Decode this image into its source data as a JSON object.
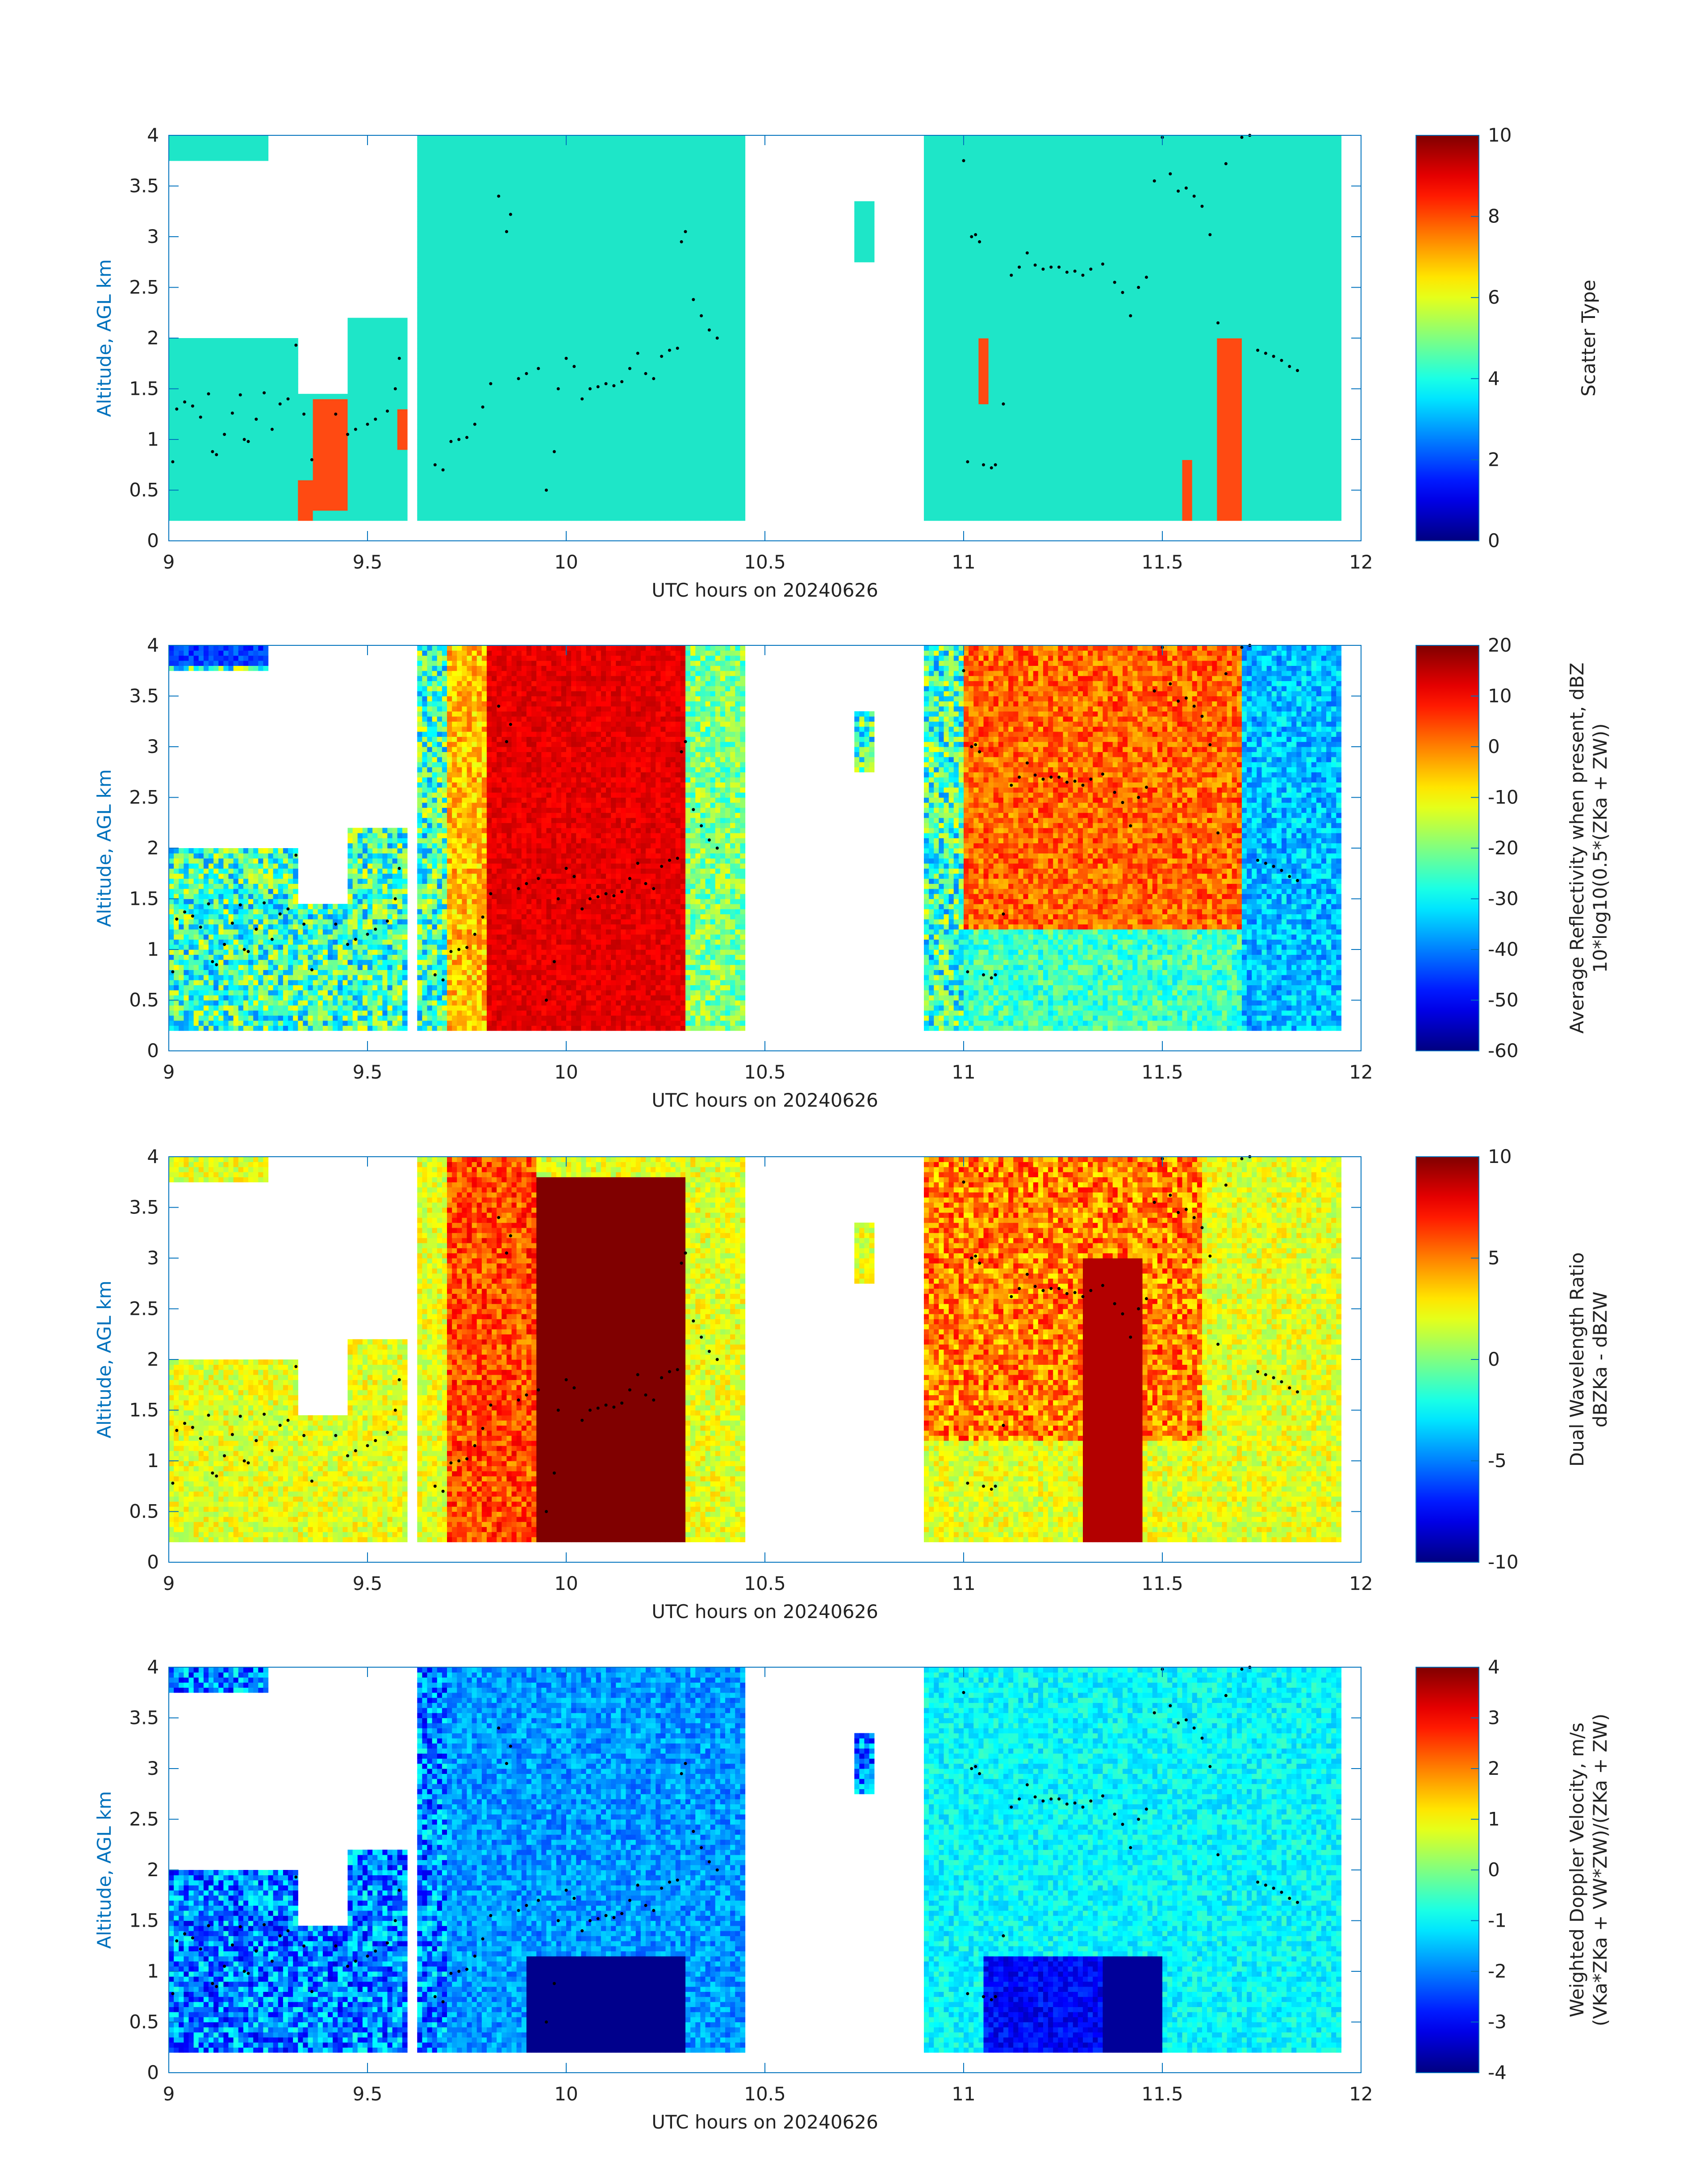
{
  "chart_data": [
    {
      "type": "heatmap",
      "xlabel": "UTC hours on 20240626",
      "ylabel": "Altitude, AGL km",
      "colorbar_label": [
        "Scatter Type"
      ],
      "xlim": [
        9,
        12
      ],
      "ylim": [
        0,
        4
      ],
      "xticks": [
        "9",
        "9.5",
        "10",
        "10.5",
        "11",
        "11.5",
        "12"
      ],
      "yticks": [
        "0",
        "0.5",
        "1",
        "1.5",
        "2",
        "2.5",
        "3",
        "3.5",
        "4"
      ],
      "clim": [
        0,
        10
      ],
      "cticks": [
        "0",
        "2",
        "4",
        "6",
        "8",
        "10"
      ],
      "field": "type"
    },
    {
      "type": "heatmap",
      "xlabel": "UTC hours on 20240626",
      "ylabel": "Altitude, AGL km",
      "colorbar_label": [
        "Average Reflectivity when present, dBZ",
        "10*log10(0.5*(Z_Ka + Z_W))"
      ],
      "xlim": [
        9,
        12
      ],
      "ylim": [
        0,
        4
      ],
      "xticks": [
        "9",
        "9.5",
        "10",
        "10.5",
        "11",
        "11.5",
        "12"
      ],
      "yticks": [
        "0",
        "0.5",
        "1",
        "1.5",
        "2",
        "2.5",
        "3",
        "3.5",
        "4"
      ],
      "clim": [
        -60,
        20
      ],
      "cticks": [
        "-60",
        "-50",
        "-40",
        "-30",
        "-20",
        "-10",
        "0",
        "10",
        "20"
      ],
      "field": "refl"
    },
    {
      "type": "heatmap",
      "xlabel": "UTC hours on 20240626",
      "ylabel": "Altitude, AGL km",
      "colorbar_label": [
        "Dual Wavelength Ratio",
        "dBZ_Ka - dBZ_W"
      ],
      "xlim": [
        9,
        12
      ],
      "ylim": [
        0,
        4
      ],
      "xticks": [
        "9",
        "9.5",
        "10",
        "10.5",
        "11",
        "11.5",
        "12"
      ],
      "yticks": [
        "0",
        "0.5",
        "1",
        "1.5",
        "2",
        "2.5",
        "3",
        "3.5",
        "4"
      ],
      "clim": [
        -10,
        10
      ],
      "cticks": [
        "-10",
        "-5",
        "0",
        "5",
        "10"
      ],
      "field": "dwr"
    },
    {
      "type": "heatmap",
      "xlabel": "UTC hours on 20240626",
      "ylabel": "Altitude, AGL km",
      "colorbar_label": [
        "Weighted Doppler Velocity, m/s",
        "(V_Ka*Z_Ka + V_W*Z_W)/(Z_Ka + Z_W)"
      ],
      "xlim": [
        9,
        12
      ],
      "ylim": [
        0,
        4
      ],
      "xticks": [
        "9",
        "9.5",
        "10",
        "10.5",
        "11",
        "11.5",
        "12"
      ],
      "yticks": [
        "0",
        "0.5",
        "1",
        "1.5",
        "2",
        "2.5",
        "3",
        "3.5",
        "4"
      ],
      "clim": [
        -4,
        4
      ],
      "cticks": [
        "-4",
        "-3",
        "-2",
        "-1",
        "0",
        "1",
        "2",
        "3",
        "4"
      ],
      "field": "vel"
    }
  ],
  "colormap": "jet",
  "colors": {
    "axis": "#0072bd",
    "type_main": "#1ee6c8",
    "type_alt": "#ff4a12",
    "marker": "#000000"
  },
  "echo_regions": [
    {
      "t0": 9.0,
      "t1": 9.33,
      "z0": 0.2,
      "z1": 2.0
    },
    {
      "t0": 9.0,
      "t1": 9.25,
      "z0": 3.75,
      "z1": 4.0
    },
    {
      "t0": 9.33,
      "t1": 9.45,
      "z0": 0.2,
      "z1": 1.45
    },
    {
      "t0": 9.45,
      "t1": 9.6,
      "z0": 0.2,
      "z1": 2.2
    },
    {
      "t0": 9.63,
      "t1": 10.45,
      "z0": 0.2,
      "z1": 4.0
    },
    {
      "t0": 10.36,
      "t1": 10.4,
      "z0": 2.78,
      "z1": 2.9
    },
    {
      "t0": 10.72,
      "t1": 10.77,
      "z0": 2.75,
      "z1": 3.35
    },
    {
      "t0": 10.9,
      "t1": 11.95,
      "z0": 0.2,
      "z1": 4.0
    }
  ],
  "overlay_points": [
    [
      9.01,
      0.78
    ],
    [
      9.02,
      1.3
    ],
    [
      9.04,
      1.37
    ],
    [
      9.06,
      1.33
    ],
    [
      9.08,
      1.22
    ],
    [
      9.1,
      1.45
    ],
    [
      9.11,
      0.88
    ],
    [
      9.12,
      0.85
    ],
    [
      9.14,
      1.05
    ],
    [
      9.16,
      1.26
    ],
    [
      9.18,
      1.44
    ],
    [
      9.19,
      1.0
    ],
    [
      9.2,
      0.98
    ],
    [
      9.22,
      1.2
    ],
    [
      9.24,
      1.46
    ],
    [
      9.26,
      1.1
    ],
    [
      9.28,
      1.35
    ],
    [
      9.3,
      1.4
    ],
    [
      9.32,
      1.93
    ],
    [
      9.34,
      1.25
    ],
    [
      9.36,
      0.8
    ],
    [
      9.42,
      1.25
    ],
    [
      9.45,
      1.05
    ],
    [
      9.47,
      1.1
    ],
    [
      9.5,
      1.15
    ],
    [
      9.52,
      1.2
    ],
    [
      9.55,
      1.28
    ],
    [
      9.57,
      1.5
    ],
    [
      9.58,
      1.8
    ],
    [
      9.67,
      0.75
    ],
    [
      9.69,
      0.7
    ],
    [
      9.71,
      0.98
    ],
    [
      9.73,
      1.0
    ],
    [
      9.75,
      1.02
    ],
    [
      9.77,
      1.15
    ],
    [
      9.79,
      1.32
    ],
    [
      9.81,
      1.55
    ],
    [
      9.83,
      3.4
    ],
    [
      9.85,
      3.05
    ],
    [
      9.86,
      3.22
    ],
    [
      9.88,
      1.6
    ],
    [
      9.9,
      1.65
    ],
    [
      9.93,
      1.7
    ],
    [
      9.95,
      0.5
    ],
    [
      9.97,
      0.88
    ],
    [
      9.98,
      1.5
    ],
    [
      10.0,
      1.8
    ],
    [
      10.02,
      1.72
    ],
    [
      10.04,
      1.4
    ],
    [
      10.06,
      1.5
    ],
    [
      10.08,
      1.52
    ],
    [
      10.1,
      1.55
    ],
    [
      10.12,
      1.53
    ],
    [
      10.14,
      1.57
    ],
    [
      10.16,
      1.7
    ],
    [
      10.18,
      1.85
    ],
    [
      10.2,
      1.65
    ],
    [
      10.22,
      1.6
    ],
    [
      10.24,
      1.82
    ],
    [
      10.26,
      1.88
    ],
    [
      10.28,
      1.9
    ],
    [
      10.29,
      2.95
    ],
    [
      10.3,
      3.05
    ],
    [
      10.32,
      2.38
    ],
    [
      10.34,
      2.22
    ],
    [
      10.36,
      2.08
    ],
    [
      10.38,
      2.0
    ],
    [
      11.0,
      3.75
    ],
    [
      11.01,
      0.78
    ],
    [
      11.02,
      3.0
    ],
    [
      11.03,
      3.02
    ],
    [
      11.04,
      2.95
    ],
    [
      11.05,
      0.75
    ],
    [
      11.07,
      0.72
    ],
    [
      11.08,
      0.75
    ],
    [
      11.1,
      1.35
    ],
    [
      11.12,
      2.62
    ],
    [
      11.14,
      2.7
    ],
    [
      11.16,
      2.84
    ],
    [
      11.18,
      2.72
    ],
    [
      11.2,
      2.68
    ],
    [
      11.22,
      2.7
    ],
    [
      11.24,
      2.7
    ],
    [
      11.26,
      2.65
    ],
    [
      11.28,
      2.66
    ],
    [
      11.3,
      2.62
    ],
    [
      11.32,
      2.68
    ],
    [
      11.35,
      2.73
    ],
    [
      11.38,
      2.55
    ],
    [
      11.4,
      2.45
    ],
    [
      11.42,
      2.22
    ],
    [
      11.44,
      2.5
    ],
    [
      11.46,
      2.6
    ],
    [
      11.48,
      3.55
    ],
    [
      11.5,
      3.98
    ],
    [
      11.52,
      3.62
    ],
    [
      11.54,
      3.45
    ],
    [
      11.56,
      3.48
    ],
    [
      11.58,
      3.4
    ],
    [
      11.6,
      3.3
    ],
    [
      11.62,
      3.02
    ],
    [
      11.64,
      2.15
    ],
    [
      11.66,
      3.72
    ],
    [
      11.7,
      3.98
    ],
    [
      11.72,
      4.0
    ],
    [
      11.74,
      1.88
    ],
    [
      11.76,
      1.85
    ],
    [
      11.78,
      1.82
    ],
    [
      11.8,
      1.78
    ],
    [
      11.82,
      1.72
    ],
    [
      11.84,
      1.68
    ]
  ]
}
